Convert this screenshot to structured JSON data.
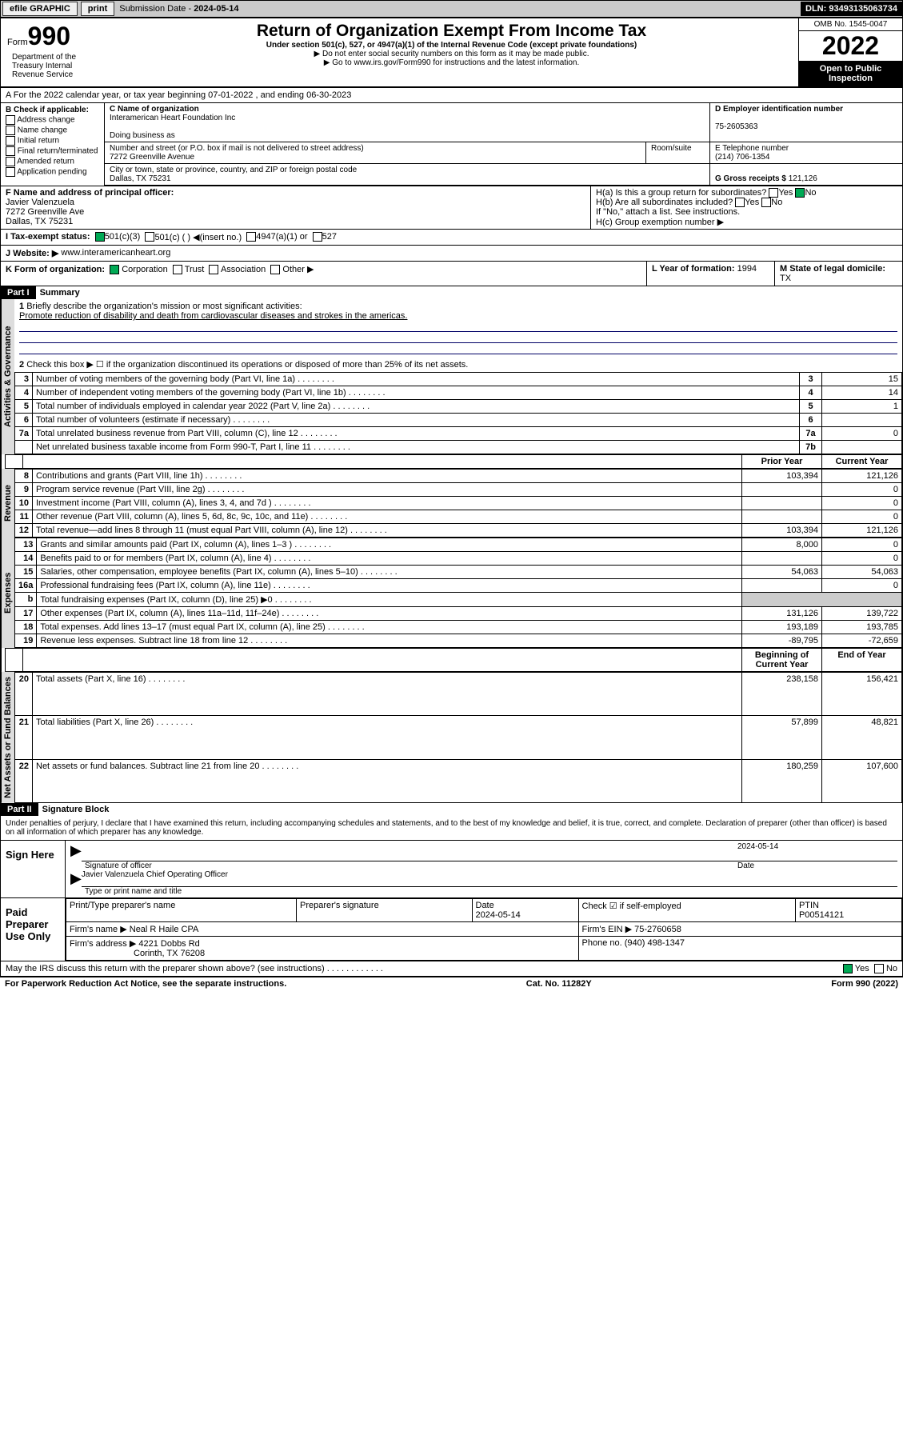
{
  "topbar": {
    "efile": "efile GRAPHIC",
    "print": "print",
    "sub_lbl": "Submission Date - ",
    "sub_date": "2024-05-14",
    "dln": "DLN: 93493135063734"
  },
  "header": {
    "form": "Form",
    "form_no": "990",
    "title": "Return of Organization Exempt From Income Tax",
    "sub1": "Under section 501(c), 527, or 4947(a)(1) of the Internal Revenue Code (except private foundations)",
    "sub2": "▶ Do not enter social security numbers on this form as it may be made public.",
    "sub3": "▶ Go to www.irs.gov/Form990 for instructions and the latest information.",
    "omb": "OMB No. 1545-0047",
    "year": "2022",
    "open": "Open to Public Inspection",
    "dept": "Department of the Treasury Internal Revenue Service"
  },
  "secA": {
    "text": "A For the 2022 calendar year, or tax year beginning 07-01-2022   , and ending 06-30-2023"
  },
  "secB": {
    "hdr": "B Check if applicable:",
    "items": [
      "Address change",
      "Name change",
      "Initial return",
      "Final return/terminated",
      "Amended return",
      "Application pending"
    ]
  },
  "secC": {
    "lbl": "C Name of organization",
    "name": "Interamerican Heart Foundation Inc",
    "dba_lbl": "Doing business as",
    "addr_lbl": "Number and street (or P.O. box if mail is not delivered to street address)",
    "room_lbl": "Room/suite",
    "addr": "7272 Greenville Avenue",
    "city_lbl": "City or town, state or province, country, and ZIP or foreign postal code",
    "city": "Dallas, TX  75231"
  },
  "secD": {
    "lbl": "D Employer identification number",
    "val": "75-2605363"
  },
  "secE": {
    "lbl": "E Telephone number",
    "val": "(214) 706-1354"
  },
  "secG": {
    "lbl": "G Gross receipts $",
    "val": "121,126"
  },
  "secF": {
    "lbl": "F Name and address of principal officer:",
    "name": "Javier Valenzuela",
    "addr": "7272 Greenville Ave",
    "city": "Dallas, TX  75231"
  },
  "secH": {
    "a": "H(a)  Is this a group return for subordinates?",
    "b": "H(b)  Are all subordinates included?",
    "b2": "If \"No,\" attach a list. See instructions.",
    "c": "H(c)  Group exemption number ▶",
    "yes": "Yes",
    "no": "No"
  },
  "secI": {
    "lbl": "I   Tax-exempt status:",
    "opts": [
      "501(c)(3)",
      "501(c) (  ) ◀(insert no.)",
      "4947(a)(1) or",
      "527"
    ]
  },
  "secJ": {
    "lbl": "J   Website: ▶",
    "val": "www.interamericanheart.org"
  },
  "secK": {
    "lbl": "K Form of organization:",
    "opts": [
      "Corporation",
      "Trust",
      "Association",
      "Other ▶"
    ]
  },
  "secL": {
    "lbl": "L Year of formation:",
    "val": "1994"
  },
  "secM": {
    "lbl": "M State of legal domicile:",
    "val": "TX"
  },
  "part1": {
    "hdr": "Part I",
    "title": "Summary"
  },
  "summary": {
    "q1": "Briefly describe the organization's mission or most significant activities:",
    "q1a": "Promote reduction of disability and death from cardiovascular diseases and strokes in the americas.",
    "q2": "Check this box ▶ ☐  if the organization discontinued its operations or disposed of more than 25% of its net assets.",
    "lines": [
      {
        "n": "3",
        "t": "Number of voting members of the governing body (Part VI, line 1a)",
        "b": "3",
        "v": "15"
      },
      {
        "n": "4",
        "t": "Number of independent voting members of the governing body (Part VI, line 1b)",
        "b": "4",
        "v": "14"
      },
      {
        "n": "5",
        "t": "Total number of individuals employed in calendar year 2022 (Part V, line 2a)",
        "b": "5",
        "v": "1"
      },
      {
        "n": "6",
        "t": "Total number of volunteers (estimate if necessary)",
        "b": "6",
        "v": ""
      },
      {
        "n": "7a",
        "t": "Total unrelated business revenue from Part VIII, column (C), line 12",
        "b": "7a",
        "v": "0"
      },
      {
        "n": "",
        "t": "Net unrelated business taxable income from Form 990-T, Part I, line 11",
        "b": "7b",
        "v": ""
      }
    ]
  },
  "cols": {
    "py": "Prior Year",
    "cy": "Current Year",
    "boy": "Beginning of Current Year",
    "eoy": "End of Year"
  },
  "revenue": [
    {
      "n": "8",
      "t": "Contributions and grants (Part VIII, line 1h)",
      "p": "103,394",
      "c": "121,126"
    },
    {
      "n": "9",
      "t": "Program service revenue (Part VIII, line 2g)",
      "p": "",
      "c": "0"
    },
    {
      "n": "10",
      "t": "Investment income (Part VIII, column (A), lines 3, 4, and 7d )",
      "p": "",
      "c": "0"
    },
    {
      "n": "11",
      "t": "Other revenue (Part VIII, column (A), lines 5, 6d, 8c, 9c, 10c, and 11e)",
      "p": "",
      "c": "0"
    },
    {
      "n": "12",
      "t": "Total revenue—add lines 8 through 11 (must equal Part VIII, column (A), line 12)",
      "p": "103,394",
      "c": "121,126"
    }
  ],
  "expenses": [
    {
      "n": "13",
      "t": "Grants and similar amounts paid (Part IX, column (A), lines 1–3 )",
      "p": "8,000",
      "c": "0"
    },
    {
      "n": "14",
      "t": "Benefits paid to or for members (Part IX, column (A), line 4)",
      "p": "",
      "c": "0"
    },
    {
      "n": "15",
      "t": "Salaries, other compensation, employee benefits (Part IX, column (A), lines 5–10)",
      "p": "54,063",
      "c": "54,063"
    },
    {
      "n": "16a",
      "t": "Professional fundraising fees (Part IX, column (A), line 11e)",
      "p": "",
      "c": "0"
    },
    {
      "n": "b",
      "t": "Total fundraising expenses (Part IX, column (D), line 25) ▶0",
      "p": "—",
      "c": "—"
    },
    {
      "n": "17",
      "t": "Other expenses (Part IX, column (A), lines 11a–11d, 11f–24e)",
      "p": "131,126",
      "c": "139,722"
    },
    {
      "n": "18",
      "t": "Total expenses. Add lines 13–17 (must equal Part IX, column (A), line 25)",
      "p": "193,189",
      "c": "193,785"
    },
    {
      "n": "19",
      "t": "Revenue less expenses. Subtract line 18 from line 12",
      "p": "-89,795",
      "c": "-72,659"
    }
  ],
  "netassets": [
    {
      "n": "20",
      "t": "Total assets (Part X, line 16)",
      "p": "238,158",
      "c": "156,421"
    },
    {
      "n": "21",
      "t": "Total liabilities (Part X, line 26)",
      "p": "57,899",
      "c": "48,821"
    },
    {
      "n": "22",
      "t": "Net assets or fund balances. Subtract line 21 from line 20",
      "p": "180,259",
      "c": "107,600"
    }
  ],
  "part2": {
    "hdr": "Part II",
    "title": "Signature Block"
  },
  "decl": "Under penalties of perjury, I declare that I have examined this return, including accompanying schedules and statements, and to the best of my knowledge and belief, it is true, correct, and complete. Declaration of preparer (other than officer) is based on all information of which preparer has any knowledge.",
  "sign": {
    "here": "Sign Here",
    "sig_lbl": "Signature of officer",
    "date_lbl": "Date",
    "date": "2024-05-14",
    "name": "Javier Valenzuela  Chief Operating Officer",
    "name_lbl": "Type or print name and title"
  },
  "paid": {
    "hdr": "Paid Preparer Use Only",
    "col1": "Print/Type preparer's name",
    "col2": "Preparer's signature",
    "col3": "Date",
    "col3v": "2024-05-14",
    "col4": "Check ☑ if self-employed",
    "col5": "PTIN",
    "col5v": "P00514121",
    "firm_lbl": "Firm's name   ▶",
    "firm": "Neal R Haile CPA",
    "ein_lbl": "Firm's EIN ▶",
    "ein": "75-2760658",
    "addr_lbl": "Firm's address ▶",
    "addr": "4221 Dobbs Rd",
    "addr2": "Corinth, TX  76208",
    "ph_lbl": "Phone no.",
    "ph": "(940) 498-1347"
  },
  "irs": {
    "q": "May the IRS discuss this return with the preparer shown above? (see instructions)",
    "yes": "Yes",
    "no": "No"
  },
  "foot": {
    "l": "For Paperwork Reduction Act Notice, see the separate instructions.",
    "m": "Cat. No. 11282Y",
    "r": "Form 990 (2022)"
  },
  "vtabs": {
    "ag": "Activities & Governance",
    "rev": "Revenue",
    "exp": "Expenses",
    "na": "Net Assets or Fund Balances"
  }
}
